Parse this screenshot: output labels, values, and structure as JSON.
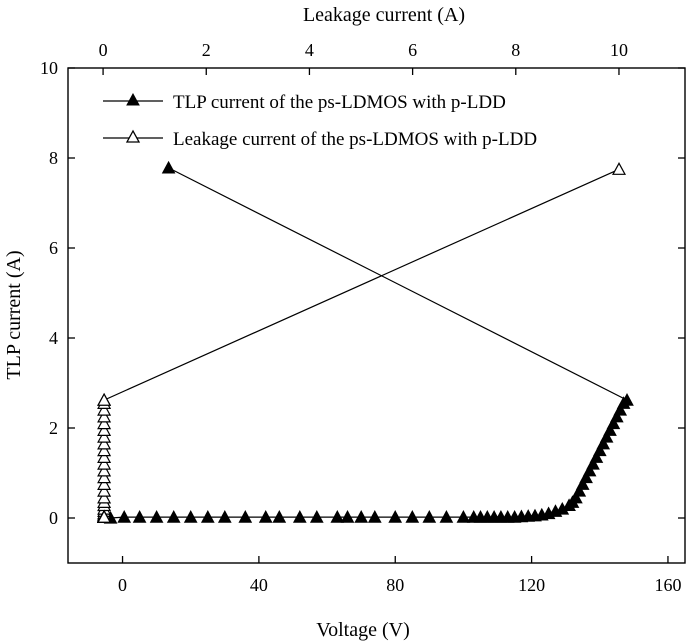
{
  "chart_data": {
    "type": "scatter",
    "xlabel": "Voltage (V)",
    "ylabel": "TLP current (A)",
    "x2label": "Leakage current (A)",
    "xlim": [
      -16,
      165
    ],
    "ylim": [
      -1,
      10
    ],
    "x2lim": [
      -0.68,
      11.28
    ],
    "x_ticks": [
      0,
      40,
      80,
      120,
      160
    ],
    "y_ticks": [
      0,
      2,
      4,
      6,
      8,
      10
    ],
    "x2_ticks": [
      0,
      2,
      4,
      6,
      8,
      10
    ],
    "x_tick_labels": [
      "0",
      "40",
      "80",
      "120",
      "160"
    ],
    "y_tick_labels": [
      "0",
      "2",
      "4",
      "6",
      "8",
      "10"
    ],
    "x2_tick_labels": [
      "0",
      "2",
      "4",
      "6",
      "8",
      "10"
    ],
    "legend_position": "top",
    "series": [
      {
        "name": "TLP current of the ps-LDMOS with p-LDD",
        "axis": "bottom",
        "marker": "filled-triangle",
        "x": [
          -3.5,
          0.5,
          5,
          10,
          15,
          20,
          25,
          30,
          36,
          42,
          46,
          52,
          57,
          63,
          66,
          70,
          74,
          80,
          85,
          90,
          95,
          100,
          103,
          105,
          107,
          109,
          111,
          113,
          115,
          117,
          119,
          121,
          123,
          125,
          127,
          129,
          131,
          132,
          133,
          134,
          135,
          136,
          137,
          138,
          139,
          140,
          141,
          142,
          143,
          144,
          145,
          146,
          147,
          148,
          13.5
        ],
        "y": [
          0,
          0.02,
          0.02,
          0.02,
          0.02,
          0.02,
          0.02,
          0.02,
          0.02,
          0.02,
          0.02,
          0.02,
          0.02,
          0.02,
          0.02,
          0.02,
          0.02,
          0.02,
          0.02,
          0.02,
          0.02,
          0.02,
          0.02,
          0.02,
          0.02,
          0.02,
          0.02,
          0.02,
          0.02,
          0.03,
          0.04,
          0.05,
          0.07,
          0.1,
          0.15,
          0.2,
          0.28,
          0.35,
          0.45,
          0.6,
          0.75,
          0.9,
          1.05,
          1.2,
          1.35,
          1.5,
          1.65,
          1.8,
          1.95,
          2.1,
          2.25,
          2.4,
          2.55,
          2.62,
          7.78
        ]
      },
      {
        "name": "Leakage current of the ps-LDMOS with p-LDD",
        "axis": "top",
        "marker": "open-triangle",
        "x": [
          0.02,
          0.02,
          0.02,
          0.02,
          0.02,
          0.02,
          0.02,
          0.02,
          0.02,
          0.02,
          0.02,
          0.02,
          0.02,
          0.02,
          0.02,
          0.02,
          0.02,
          0.02,
          0.02,
          0.02,
          0.02,
          0.02,
          0.02,
          0.02,
          0.02,
          0.02,
          0.02,
          0.02,
          0.02,
          0.02,
          0.02,
          0.02,
          0.02,
          0.02,
          0.02,
          0.02,
          0.02,
          0.02,
          0.02,
          0.02,
          0.02,
          0.02,
          0.02,
          0.02,
          0.02,
          0.02,
          0.02,
          0.02,
          0.02,
          0.02,
          0.02,
          0.02,
          0.02,
          0.02,
          10.0
        ],
        "y": [
          0.02,
          0.03,
          0.04,
          0.05,
          0.07,
          0.1,
          0.15,
          0.2,
          0.28,
          0.35,
          0.45,
          0.6,
          0.75,
          0.9,
          1.05,
          1.2,
          1.35,
          1.5,
          1.65,
          1.8,
          1.95,
          2.1,
          2.25,
          2.4,
          2.55,
          2.62,
          0.02,
          0.02,
          0.02,
          0.02,
          0.02,
          0.02,
          0.02,
          0.02,
          0.02,
          0.02,
          0.02,
          0.02,
          0.02,
          0.02,
          0.02,
          0.02,
          0.02,
          0.02,
          0.02,
          0.02,
          0.02,
          0.02,
          0.02,
          0.02,
          0.02,
          0.02,
          0.02,
          2.62,
          7.75
        ]
      }
    ]
  }
}
